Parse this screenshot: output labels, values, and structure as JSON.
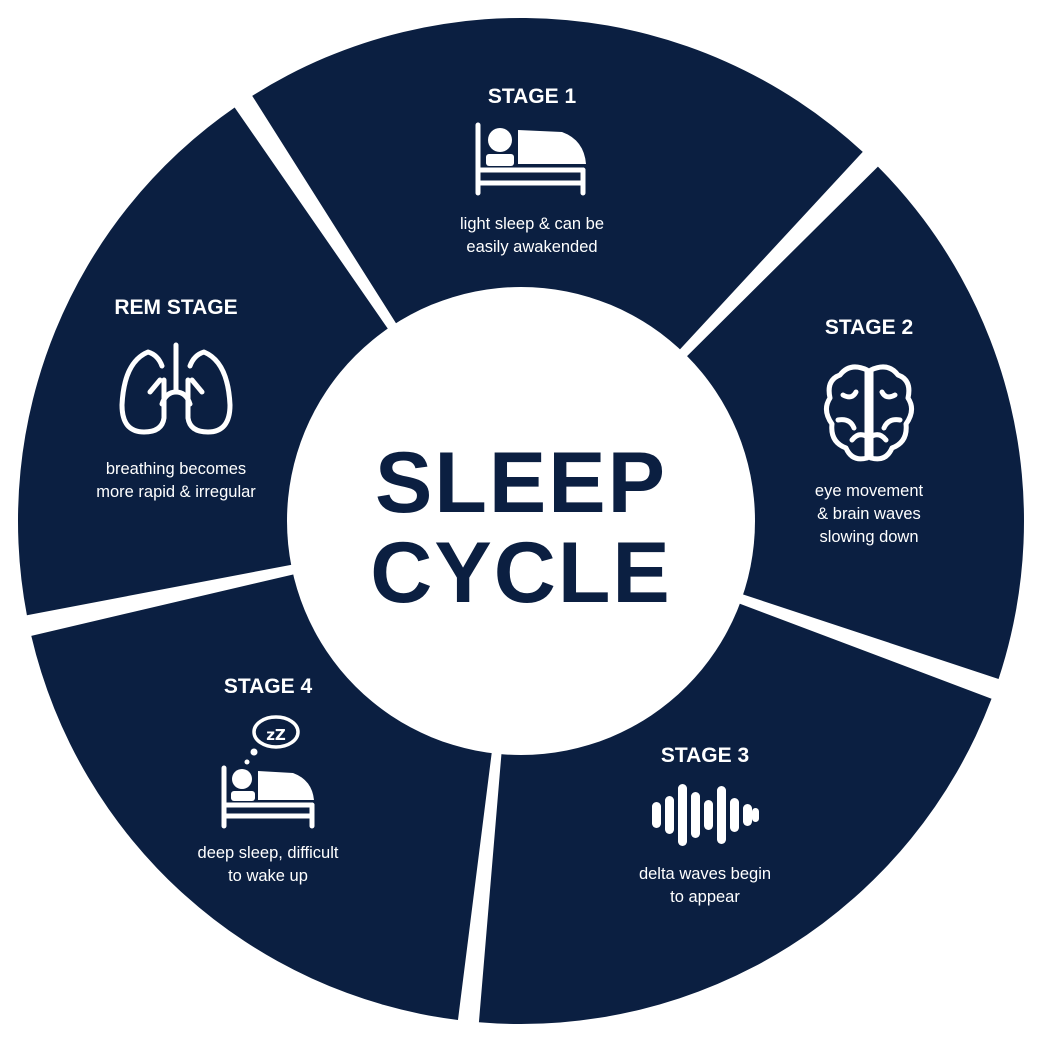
{
  "center": {
    "line1": "SLEEP",
    "line2": "CYCLE"
  },
  "colors": {
    "segment": "#0b1f41",
    "background": "#ffffff",
    "text_on_segment": "#ffffff",
    "center_text": "#0b1f41"
  },
  "stages": [
    {
      "id": "stage-1",
      "title": "STAGE 1",
      "desc_lines": [
        "light sleep & can be",
        "easily awakended"
      ],
      "icon": "bed-sleeping-icon"
    },
    {
      "id": "stage-2",
      "title": "STAGE 2",
      "desc_lines": [
        "eye movement",
        "& brain waves",
        "slowing down"
      ],
      "icon": "brain-icon"
    },
    {
      "id": "stage-3",
      "title": "STAGE 3",
      "desc_lines": [
        "delta waves begin",
        "to appear"
      ],
      "icon": "sound-waves-icon"
    },
    {
      "id": "stage-4",
      "title": "STAGE 4",
      "desc_lines": [
        "deep sleep, difficult",
        "to wake up"
      ],
      "icon": "bed-zzz-icon"
    },
    {
      "id": "rem-stage",
      "title": "REM STAGE",
      "desc_lines": [
        "breathing becomes",
        "more rapid & irregular"
      ],
      "icon": "lungs-icon"
    }
  ]
}
